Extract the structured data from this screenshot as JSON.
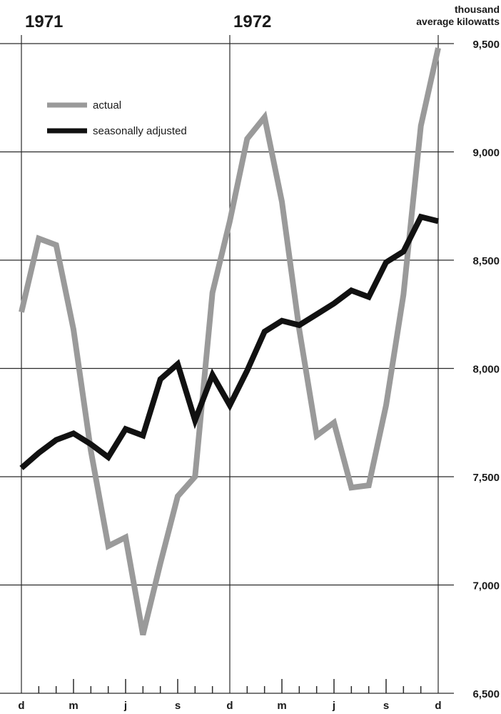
{
  "chart_data": {
    "type": "line",
    "title": "",
    "xlabel": "",
    "ylabel": "thousand average kilowatts",
    "ylabel_lines": [
      "thousand",
      "average kilowatts"
    ],
    "year_labels": [
      {
        "text": "1971",
        "month_index": 0
      },
      {
        "text": "1972",
        "month_index": 12
      }
    ],
    "month_labels": [
      {
        "text": "d",
        "month_index": 0
      },
      {
        "text": "m",
        "month_index": 3
      },
      {
        "text": "j",
        "month_index": 6
      },
      {
        "text": "s",
        "month_index": 9
      },
      {
        "text": "d",
        "month_index": 12
      },
      {
        "text": "m",
        "month_index": 15
      },
      {
        "text": "j",
        "month_index": 18
      },
      {
        "text": "s",
        "month_index": 21
      },
      {
        "text": "d",
        "month_index": 24
      }
    ],
    "y_ticks": [
      {
        "value": 9500,
        "label": "9,500"
      },
      {
        "value": 9000,
        "label": "9,000"
      },
      {
        "value": 8500,
        "label": "8,500"
      },
      {
        "value": 8000,
        "label": "8,000"
      },
      {
        "value": 7500,
        "label": "7,500"
      },
      {
        "value": 7000,
        "label": "7,000"
      },
      {
        "value": 6500,
        "label": "6,500"
      }
    ],
    "ylim": [
      6500,
      9500
    ],
    "x_months": 24,
    "grid": true,
    "legend": "top-left",
    "series": [
      {
        "name": "actual",
        "color": "#9a9a9a",
        "values": [
          8260,
          8600,
          8570,
          8180,
          7620,
          7180,
          7220,
          6770,
          7100,
          7410,
          7500,
          8350,
          8680,
          9060,
          9160,
          8770,
          8180,
          7690,
          7750,
          7450,
          7460,
          7830,
          8340,
          9120,
          9480
        ]
      },
      {
        "name": "seasonally adjusted",
        "color": "#111111",
        "values": [
          7540,
          7610,
          7670,
          7700,
          7650,
          7590,
          7720,
          7690,
          7950,
          8020,
          7760,
          7970,
          7830,
          7990,
          8170,
          8220,
          8200,
          8250,
          8300,
          8360,
          8330,
          8490,
          8540,
          8700,
          8680
        ]
      }
    ]
  }
}
